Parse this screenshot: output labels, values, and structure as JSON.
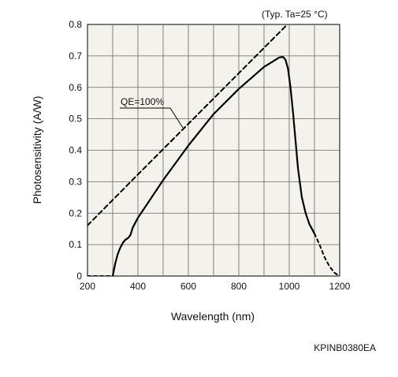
{
  "chart_data": {
    "type": "line",
    "title": "",
    "condition_note": "(Typ. Ta=25 °C)",
    "xlabel": "Wavelength (nm)",
    "ylabel": "Photosensitivity (A/W)",
    "xlim": [
      200,
      1200
    ],
    "ylim": [
      0,
      0.8
    ],
    "x_ticks": [
      200,
      400,
      600,
      800,
      1000,
      1200
    ],
    "x_tick_labels": [
      "200",
      "400",
      "600",
      "800",
      "1000",
      "1200"
    ],
    "y_ticks": [
      0,
      0.1,
      0.2,
      0.3,
      0.4,
      0.5,
      0.6,
      0.7,
      0.8
    ],
    "y_tick_labels": [
      "0",
      "0.1",
      "0.2",
      "0.3",
      "0.4",
      "0.5",
      "0.6",
      "0.7",
      "0.8"
    ],
    "grid": true,
    "series": [
      {
        "name": "QE=100%",
        "style": "dashed",
        "x": [
          200,
          400,
          600,
          800,
          1000
        ],
        "y": [
          0.161,
          0.323,
          0.484,
          0.645,
          0.806
        ]
      },
      {
        "style": "solid",
        "x": [
          300,
          310,
          320,
          330,
          340,
          350,
          360,
          370,
          380,
          400,
          450,
          500,
          550,
          600,
          650,
          700,
          750,
          800,
          850,
          900,
          940,
          960,
          975,
          985,
          995,
          1005,
          1015,
          1025,
          1035,
          1050,
          1065,
          1080,
          1090,
          1100
        ],
        "y": [
          0.0,
          0.04,
          0.07,
          0.09,
          0.105,
          0.115,
          0.12,
          0.13,
          0.155,
          0.185,
          0.245,
          0.305,
          0.36,
          0.415,
          0.465,
          0.515,
          0.555,
          0.595,
          0.63,
          0.665,
          0.685,
          0.695,
          0.697,
          0.688,
          0.66,
          0.6,
          0.52,
          0.43,
          0.34,
          0.25,
          0.2,
          0.165,
          0.15,
          0.135
        ]
      },
      {
        "style": "dotted",
        "x": [
          200,
          250,
          280,
          300
        ],
        "y": [
          0.0,
          0.0,
          0.0,
          0.0
        ]
      },
      {
        "style": "dotted",
        "x": [
          1100,
          1120,
          1140,
          1160,
          1180,
          1200
        ],
        "y": [
          0.135,
          0.1,
          0.06,
          0.03,
          0.01,
          0.0
        ]
      }
    ],
    "annotation": "QE=100%",
    "figure_code": "KPINB0380EA",
    "colors": {
      "plot_background": "#f4f2ec",
      "grid": "#666666",
      "line": "#000000"
    }
  }
}
